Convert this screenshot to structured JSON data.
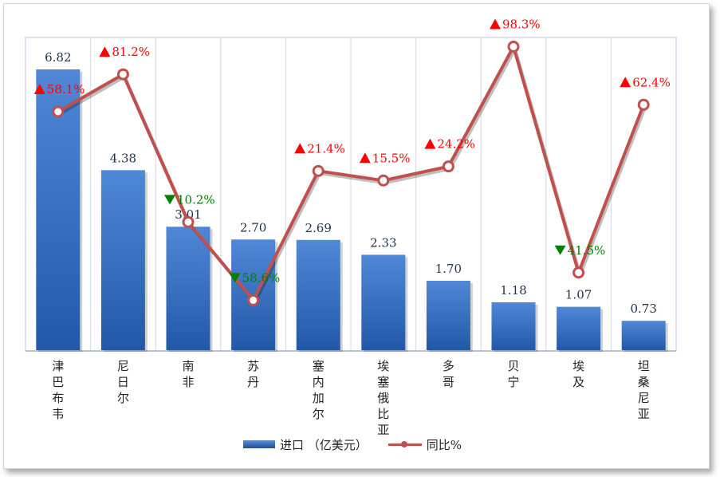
{
  "chart_data": {
    "type": "bar",
    "categories": [
      "津巴布韦",
      "尼日尔",
      "南非",
      "苏丹",
      "塞内加尔",
      "埃塞俄比亚",
      "多哥",
      "贝宁",
      "埃及",
      "坦桑尼亚"
    ],
    "series": [
      {
        "name": "进口 （亿美元）",
        "type": "bar",
        "values": [
          6.82,
          4.38,
          3.01,
          2.7,
          2.69,
          2.33,
          1.7,
          1.18,
          1.07,
          0.73
        ],
        "labels": [
          "6.82",
          "4.38",
          "3.01",
          "2.70",
          "2.69",
          "2.33",
          "1.70",
          "1.18",
          "1.07",
          "0.73"
        ],
        "color": "#3a74c4"
      },
      {
        "name": "同比%",
        "type": "line",
        "values": [
          58.1,
          81.2,
          -10.2,
          -58.6,
          21.4,
          15.5,
          24.2,
          98.3,
          -41.5,
          62.4
        ],
        "labels": [
          "58.1%",
          "81.2%",
          "10.2%",
          "58.6%",
          "21.4%",
          "15.5%",
          "24.2%",
          "98.3%",
          "41.5%",
          "62.4%"
        ],
        "color": "#c0504d"
      }
    ],
    "up_color": "#ff0000",
    "down_color": "#008000",
    "grid": "vertical",
    "legend": "bottom"
  }
}
